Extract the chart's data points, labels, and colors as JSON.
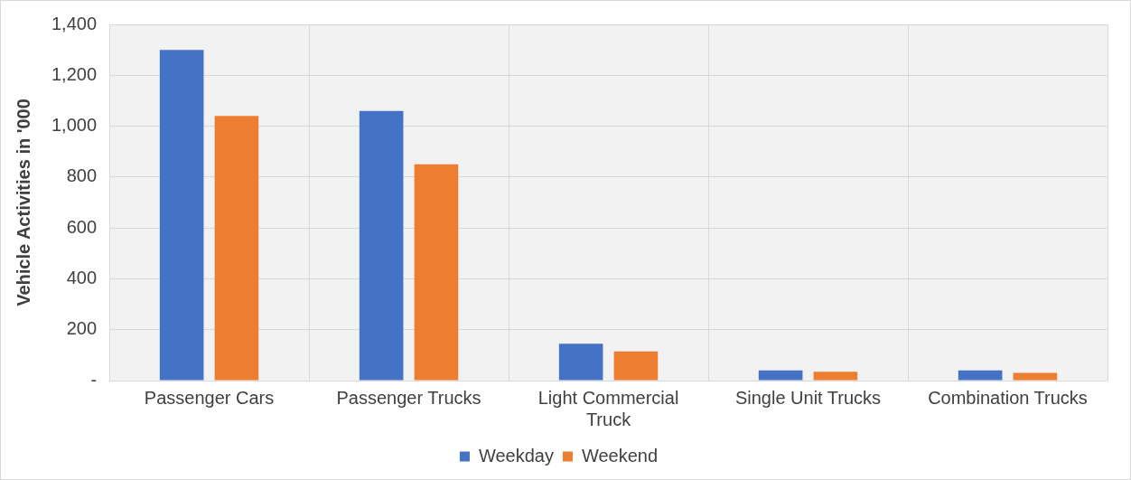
{
  "chart_data": {
    "type": "bar",
    "ylabel": "Vehicle Activities in '000",
    "categories": [
      "Passenger Cars",
      "Passenger Trucks",
      "Light Commercial Truck",
      "Single Unit Trucks",
      "Combination Trucks"
    ],
    "series": [
      {
        "name": "Weekday",
        "color": "#4472c4",
        "values": [
          1300,
          1060,
          145,
          40,
          40
        ]
      },
      {
        "name": "Weekend",
        "color": "#ed7d31",
        "values": [
          1040,
          850,
          115,
          35,
          30
        ]
      }
    ],
    "ylim": [
      0,
      1400
    ],
    "yticks": [
      {
        "value": 0,
        "label": "-"
      },
      200,
      400,
      600,
      800,
      {
        "value": 1000,
        "label": "1,000"
      },
      {
        "value": 1200,
        "label": "1,200"
      },
      {
        "value": 1400,
        "label": "1,400"
      }
    ],
    "grid": true,
    "legend": "bottom"
  }
}
